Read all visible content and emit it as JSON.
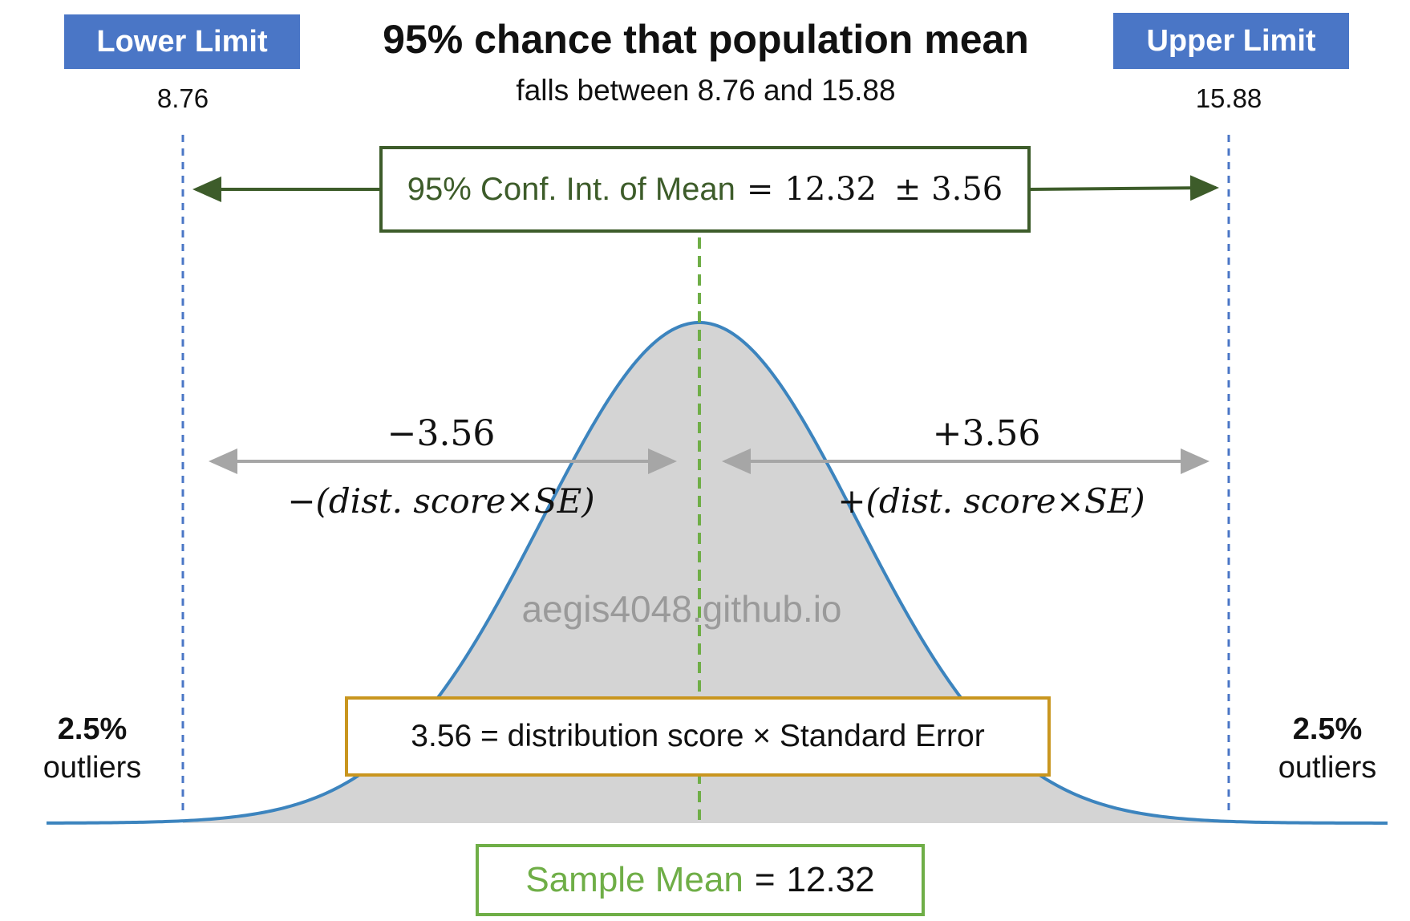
{
  "title": "95% chance that population mean",
  "subtitle": "falls between 8.76 and 15.88",
  "lower": {
    "badge": "Lower Limit",
    "value": "8.76"
  },
  "upper": {
    "badge": "Upper Limit",
    "value": "15.88"
  },
  "ci_box": {
    "label": "95% Conf. Int. of Mean",
    "eq": "=",
    "mean": "12.32",
    "pm": "± 3.56"
  },
  "left_offset": {
    "value": "−3.56",
    "formula": "−(dist. score×SE)"
  },
  "right_offset": {
    "value": "+3.56",
    "formula": "+(dist. score×SE)"
  },
  "watermark": "aegis4048.github.io",
  "se_box": {
    "text": "3.56 = distribution score × Standard Error"
  },
  "left_outliers": {
    "pct": "2.5%",
    "label": "outliers"
  },
  "right_outliers": {
    "pct": "2.5%",
    "label": "outliers"
  },
  "mean_box": {
    "label": "Sample Mean",
    "eq": "=",
    "value": "12.32"
  },
  "colors": {
    "badge": "#4a76c6",
    "ci_green": "#3d5c2a",
    "mean_green": "#6fae47",
    "curve": "#3c84be",
    "fill": "#d4d4d4",
    "limit_line": "#4a76c6",
    "se_border": "#c9961f",
    "offset_arrow": "#a6a6a6"
  }
}
